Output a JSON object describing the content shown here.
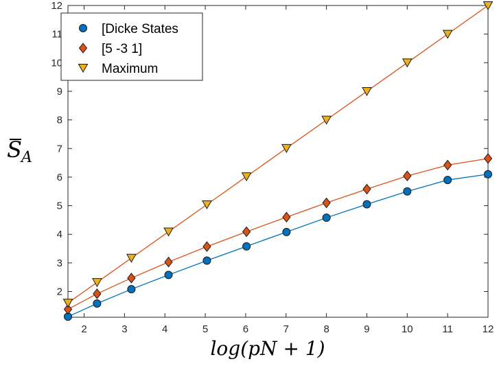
{
  "chart_data": {
    "type": "line",
    "xlabel": "log(pN + 1)",
    "ylabel": "S̄_A",
    "xlim": [
      1.6,
      12
    ],
    "ylim": [
      1.1,
      12
    ],
    "xticks": [
      2,
      3,
      4,
      5,
      6,
      7,
      8,
      9,
      10,
      11,
      12
    ],
    "yticks": [
      2,
      3,
      4,
      5,
      6,
      7,
      8,
      9,
      10,
      11,
      12
    ],
    "grid": false,
    "legend_position": "top-left",
    "x": [
      1.6,
      2.32,
      3.17,
      4.09,
      5.04,
      6.02,
      7.01,
      8.0,
      9.0,
      10.0,
      11.0,
      12.0
    ],
    "series": [
      {
        "name": "[Dicke States",
        "marker": "circle",
        "line_color": "#0072BD",
        "marker_color": "#0072BD",
        "values": [
          1.12,
          1.58,
          2.08,
          2.58,
          3.08,
          3.58,
          4.08,
          4.58,
          5.05,
          5.5,
          5.9,
          6.1
        ]
      },
      {
        "name": "[5 -3 1]",
        "marker": "diamond",
        "line_color": "#D95319",
        "marker_color": "#D95319",
        "values": [
          1.38,
          1.92,
          2.47,
          3.03,
          3.57,
          4.09,
          4.6,
          5.1,
          5.58,
          6.04,
          6.42,
          6.65
        ]
      },
      {
        "name": "Maximum",
        "marker": "triangle-down",
        "line_color": "#D95319",
        "marker_color": "#EDB120",
        "values": [
          1.6,
          2.32,
          3.17,
          4.09,
          5.04,
          6.02,
          7.01,
          8.0,
          9.0,
          10.0,
          11.0,
          12.0
        ]
      }
    ]
  }
}
